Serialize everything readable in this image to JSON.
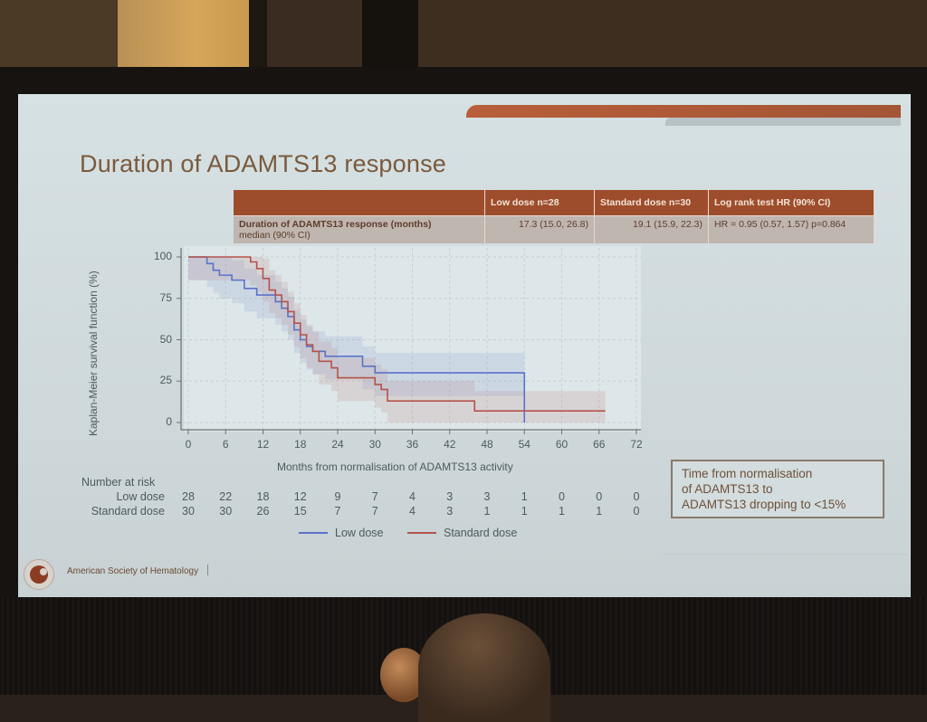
{
  "slide": {
    "title": "Duration of ADAMTS13 response",
    "accent_color": "#a8583a",
    "summary_table": {
      "headers": [
        "",
        "Low dose  n=28",
        "Standard dose n=30",
        "Log rank test HR (90% CI)"
      ],
      "row": {
        "label_line1": "Duration of ADAMTS13 response (months)",
        "label_line2": "median (90% CI)",
        "low_dose": "17.3 (15.0, 26.8)",
        "standard_dose": "19.1 (15.9, 22.3)",
        "log_rank": "HR = 0.95 (0.57, 1.57) p=0.864"
      }
    },
    "note_box": {
      "line1": "Time from normalisation",
      "line2": "of ADAMTS13 to",
      "line3": "ADAMTS13 dropping to <15%"
    },
    "footer": {
      "organization": "American Society of Hematology",
      "logo_icon": "ash-logo-icon"
    }
  },
  "chart_data": {
    "type": "line",
    "subtype": "kaplan-meier step",
    "title": "",
    "xlabel": "Months from normalisation of ADAMTS13 activity",
    "ylabel": "Kaplan-Meier survival function (%)",
    "xlim": [
      0,
      72
    ],
    "ylim": [
      0,
      100
    ],
    "x_ticks": [
      0,
      6,
      12,
      18,
      24,
      30,
      36,
      42,
      48,
      54,
      60,
      66,
      72
    ],
    "y_ticks": [
      0,
      25,
      50,
      75,
      100
    ],
    "grid": true,
    "legend_position": "bottom",
    "series": [
      {
        "name": "Low dose",
        "color": "#5a72c8",
        "x": [
          0,
          3,
          4,
          5,
          7,
          9,
          11,
          14,
          15,
          16,
          17,
          18,
          19,
          20,
          22,
          28,
          30,
          54,
          54
        ],
        "values": [
          100,
          96,
          92,
          89,
          86,
          81,
          77,
          73,
          69,
          64,
          56,
          50,
          46,
          43,
          40,
          34,
          30,
          30,
          0
        ],
        "ci_band": true
      },
      {
        "name": "Standard dose",
        "color": "#b5524a",
        "x": [
          0,
          10,
          11,
          12,
          13,
          14,
          15,
          16,
          17,
          18,
          19,
          20,
          21,
          23,
          24,
          30,
          31,
          32,
          46,
          67
        ],
        "values": [
          100,
          97,
          93,
          87,
          80,
          77,
          73,
          67,
          60,
          53,
          47,
          43,
          37,
          33,
          27,
          23,
          20,
          13,
          7,
          7
        ],
        "ci_band": true
      }
    ],
    "number_at_risk": {
      "header": "Number at risk",
      "times": [
        0,
        6,
        12,
        18,
        24,
        30,
        36,
        42,
        48,
        54,
        60,
        66,
        72
      ],
      "rows": [
        {
          "label": "Low dose",
          "values": [
            28,
            22,
            18,
            12,
            9,
            7,
            4,
            3,
            3,
            1,
            0,
            0,
            0
          ]
        },
        {
          "label": "Standard dose",
          "values": [
            30,
            30,
            26,
            15,
            7,
            7,
            4,
            3,
            1,
            1,
            1,
            1,
            0
          ]
        }
      ]
    },
    "legend": [
      {
        "label": "Low dose",
        "color": "#5a72c8"
      },
      {
        "label": "Standard dose",
        "color": "#b5524a"
      }
    ]
  }
}
